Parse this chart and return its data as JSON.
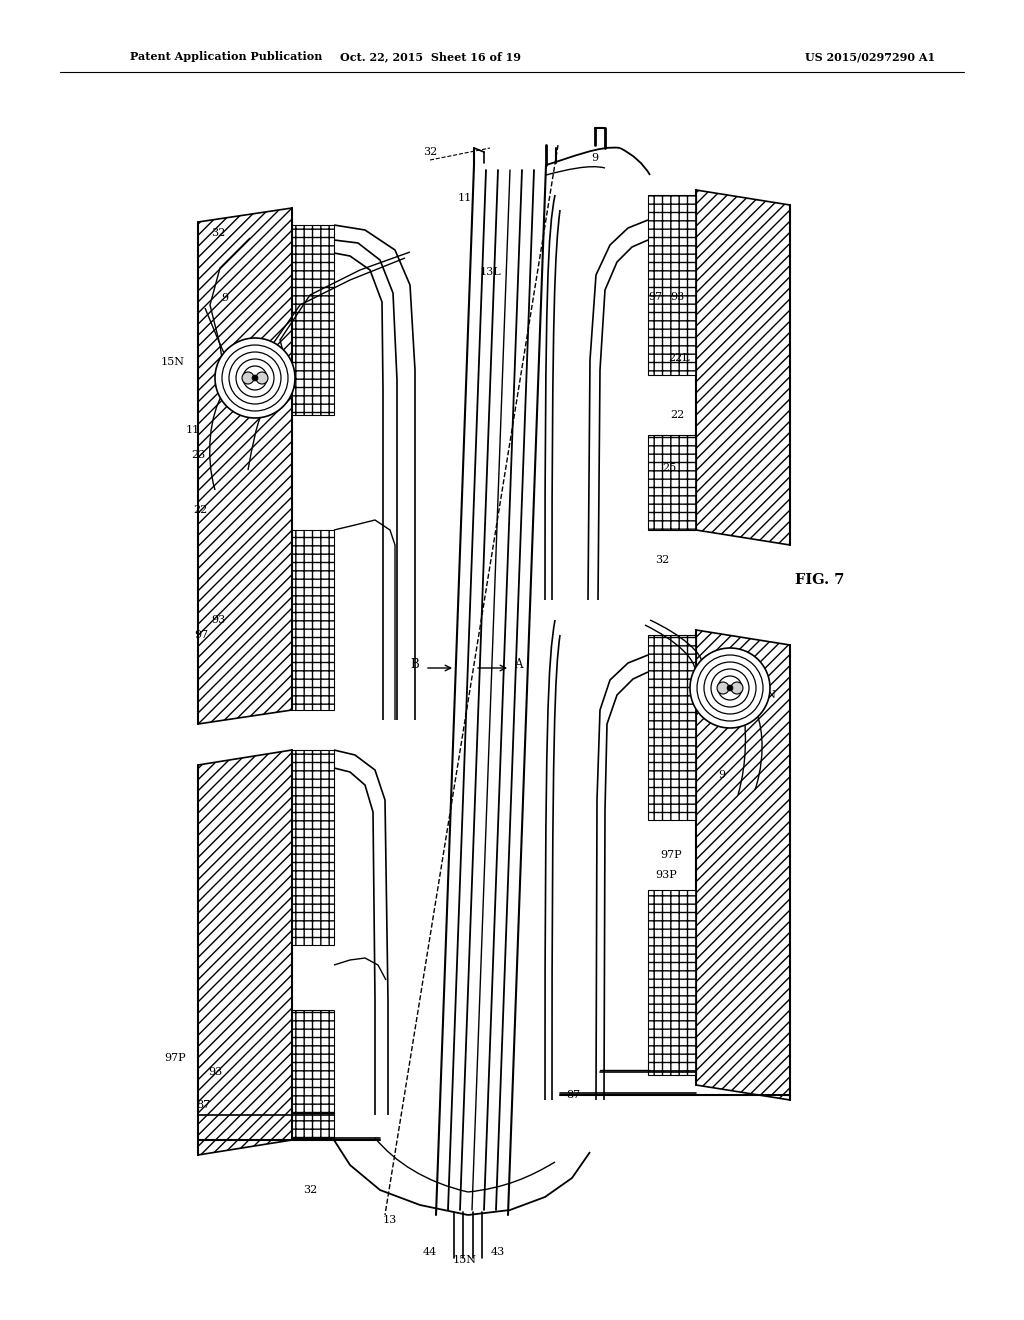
{
  "bg_color": "#ffffff",
  "header_text1": "Patent Application Publication",
  "header_text2": "Oct. 22, 2015  Sheet 16 of 19",
  "header_text3": "US 2015/0297290 A1",
  "fig_label": "FIG. 7",
  "figsize": [
    10.24,
    13.2
  ],
  "dpi": 100
}
